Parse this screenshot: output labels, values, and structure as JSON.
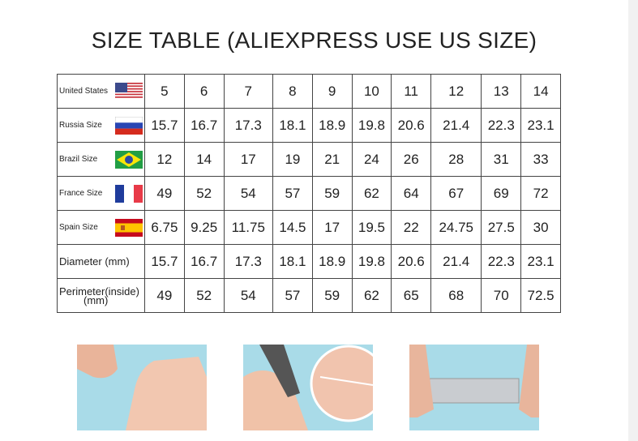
{
  "title": "SIZE TABLE (ALIEXPRESS USE US SIZE)",
  "rows": [
    {
      "label": "United States",
      "flag": "us-flag-icon",
      "values": [
        "5",
        "6",
        "7",
        "8",
        "9",
        "10",
        "11",
        "12",
        "13",
        "14"
      ]
    },
    {
      "label": "Russia Size",
      "flag": "russia-flag-icon",
      "values": [
        "15.7",
        "16.7",
        "17.3",
        "18.1",
        "18.9",
        "19.8",
        "20.6",
        "21.4",
        "22.3",
        "23.1"
      ]
    },
    {
      "label": "Brazil Size",
      "flag": "brazil-flag-icon",
      "values": [
        "12",
        "14",
        "17",
        "19",
        "21",
        "24",
        "26",
        "28",
        "31",
        "33"
      ]
    },
    {
      "label": "France Size",
      "flag": "france-flag-icon",
      "values": [
        "49",
        "52",
        "54",
        "57",
        "59",
        "62",
        "64",
        "67",
        "69",
        "72"
      ]
    },
    {
      "label": "Spain Size",
      "flag": "spain-flag-icon",
      "values": [
        "6.75",
        "9.25",
        "11.75",
        "14.5",
        "17",
        "19.5",
        "22",
        "24.75",
        "27.5",
        "30"
      ]
    },
    {
      "label": "Diameter (mm)",
      "values": [
        "15.7",
        "16.7",
        "17.3",
        "18.1",
        "18.9",
        "19.8",
        "20.6",
        "21.4",
        "22.3",
        "23.1"
      ]
    },
    {
      "label": "Perimeter(inside)",
      "label2": "(mm)",
      "values": [
        "49",
        "52",
        "54",
        "57",
        "59",
        "62",
        "65",
        "68",
        "70",
        "72.5"
      ]
    }
  ]
}
